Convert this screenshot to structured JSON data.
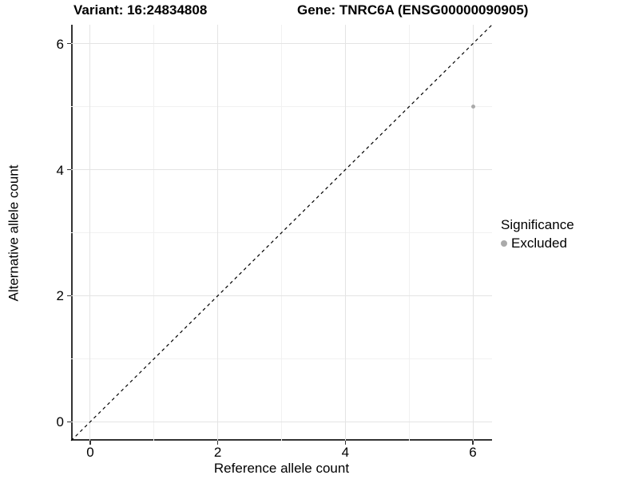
{
  "titles": {
    "variant": "Variant: 16:24834808",
    "gene": "Gene: TNRC6A (ENSG00000090905)"
  },
  "chart_data": {
    "type": "scatter",
    "xlabel": "Reference allele count",
    "ylabel": "Alternative allele count",
    "xlim": [
      -0.3,
      6.3
    ],
    "ylim": [
      -0.3,
      6.3
    ],
    "x_ticks": [
      0,
      2,
      4,
      6
    ],
    "y_ticks": [
      0,
      2,
      4,
      6
    ],
    "x_tick_labels": [
      "0",
      "2",
      "4",
      "6"
    ],
    "y_tick_labels": [
      "0",
      "2",
      "4",
      "6"
    ],
    "grid": {
      "major": true,
      "minor": true,
      "major_color": "#e4e4e4",
      "minor_color": "#f1f1f1"
    },
    "series": [
      {
        "name": "Excluded",
        "color": "#aaaaaa",
        "points": [
          {
            "x": 6,
            "y": 5
          }
        ]
      }
    ],
    "reference_line": {
      "style": "dashed",
      "color": "#000000",
      "from": {
        "x": -0.3,
        "y": -0.3
      },
      "to": {
        "x": 6.3,
        "y": 6.3
      },
      "description": "identity line y = x"
    },
    "legend": {
      "title": "Significance",
      "position": "right",
      "entries": [
        {
          "label": "Excluded",
          "color": "#aaaaaa",
          "marker": "circle"
        }
      ]
    }
  }
}
